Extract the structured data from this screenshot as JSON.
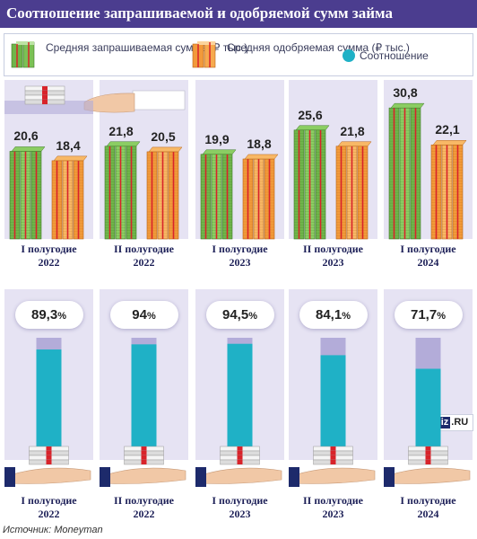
{
  "title": "Соотношение запрашиваемой и одобряемой сумм займа",
  "legend": {
    "requested": "Средняя запрашиваемая\nсумма (₽ тыс.)",
    "approved": "Средняя одобряемая\nсумма (₽ тыс.)",
    "ratio": "Соотношение"
  },
  "colors": {
    "header": "#4b3d8f",
    "requested": "#6fb54a",
    "approved": "#f29a3a",
    "ratio": "#1fb1c6",
    "panel": "#e6e3f3",
    "track": "#b3acd9"
  },
  "chart_data": [
    {
      "type": "bar",
      "categories": [
        "I полугодие\n2022",
        "II полугодие\n2022",
        "I полугодие\n2023",
        "II полугодие\n2023",
        "I полугодие\n2024"
      ],
      "series": [
        {
          "name": "Средняя запрашиваемая сумма (₽ тыс.)",
          "values": [
            20.6,
            21.8,
            19.9,
            25.6,
            30.8
          ]
        },
        {
          "name": "Средняя одобряемая сумма (₽ тыс.)",
          "values": [
            18.4,
            20.5,
            18.8,
            21.8,
            22.1
          ]
        }
      ],
      "value_labels": [
        [
          "20,6",
          "18,4"
        ],
        [
          "21,8",
          "20,5"
        ],
        [
          "19,9",
          "18,8"
        ],
        [
          "25,6",
          "21,8"
        ],
        [
          "30,8",
          "22,1"
        ]
      ],
      "ylim": [
        0,
        34
      ]
    },
    {
      "type": "bar",
      "categories": [
        "I полугодие\n2022",
        "II полугодие\n2022",
        "I полугодие\n2023",
        "II полугодие\n2023",
        "I полугодие\n2024"
      ],
      "series": [
        {
          "name": "Соотношение",
          "values": [
            89.3,
            94,
            94.5,
            84.1,
            71.7
          ]
        }
      ],
      "value_labels": [
        "89,3",
        "94",
        "94,5",
        "84,1",
        "71,7"
      ],
      "unit": "%",
      "ylim": [
        0,
        100
      ]
    }
  ],
  "source": "Источник: Moneyman",
  "logo": {
    "left": "iz",
    "right": ".RU"
  }
}
